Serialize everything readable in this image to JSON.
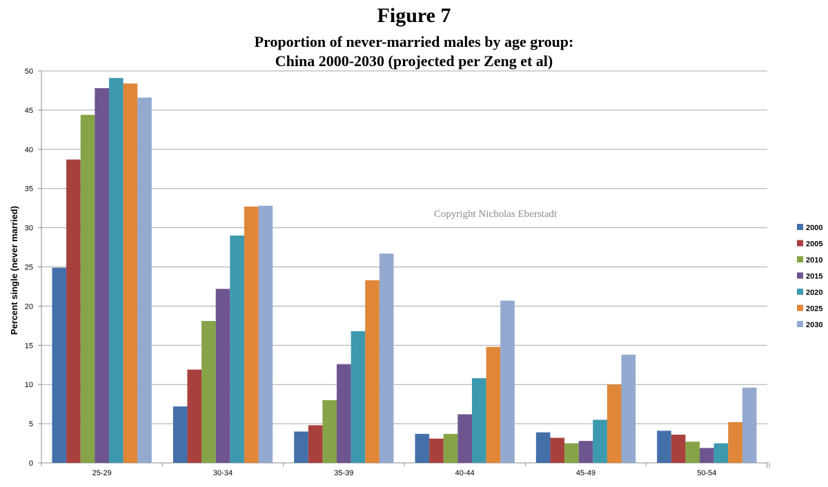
{
  "chart_data": {
    "type": "bar",
    "title": "Figure 7",
    "subtitle_line1": "Proportion of never-married males by age group:",
    "subtitle_line2": "China 2000-2030 (projected per Zeng et al)",
    "xlabel": "",
    "ylabel": "Percent single (never married)",
    "ylim": [
      0,
      50
    ],
    "yticks": [
      0,
      5,
      10,
      15,
      20,
      25,
      30,
      35,
      40,
      45,
      50
    ],
    "grid": true,
    "legend_position": "right",
    "categories": [
      "25-29",
      "30-34",
      "35-39",
      "40-44",
      "45-49",
      "50-54"
    ],
    "series": [
      {
        "name": "2000",
        "color": "#4470aa",
        "values": [
          24.9,
          7.2,
          4.0,
          3.7,
          3.9,
          4.1
        ]
      },
      {
        "name": "2005",
        "color": "#a8403e",
        "values": [
          38.7,
          11.9,
          4.8,
          3.1,
          3.2,
          3.6
        ]
      },
      {
        "name": "2010",
        "color": "#86a447",
        "values": [
          44.4,
          18.1,
          8.0,
          3.7,
          2.5,
          2.7
        ]
      },
      {
        "name": "2015",
        "color": "#6e558f",
        "values": [
          47.8,
          22.2,
          12.6,
          6.2,
          2.8,
          1.9
        ]
      },
      {
        "name": "2020",
        "color": "#3d99ae",
        "values": [
          49.1,
          29.0,
          16.8,
          10.8,
          5.5,
          2.5
        ]
      },
      {
        "name": "2025",
        "color": "#df8638",
        "values": [
          48.4,
          32.7,
          23.3,
          14.8,
          10.0,
          5.2
        ]
      },
      {
        "name": "2030",
        "color": "#93a9cf",
        "values": [
          46.6,
          32.8,
          26.7,
          20.7,
          13.8,
          9.6
        ]
      }
    ],
    "watermark": "Copyright Nicholas Eberstadt",
    "page_number": "8"
  }
}
